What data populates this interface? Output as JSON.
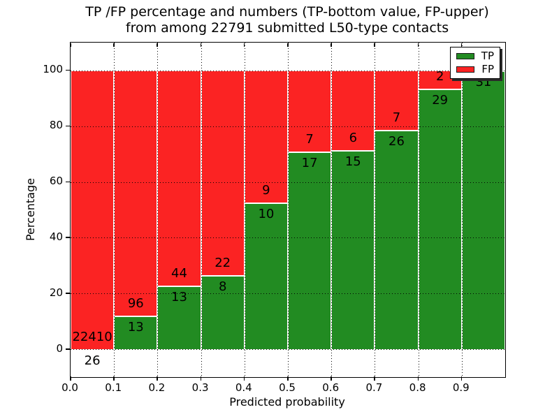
{
  "title": {
    "line1": "TP /FP percentage and numbers (TP-bottom value, FP-upper)",
    "line2": "from among 22791 submitted L50-type contacts"
  },
  "axes": {
    "xlabel": "Predicted probability",
    "ylabel": "Percentage",
    "x_ticks": [
      "0.0",
      "0.1",
      "0.2",
      "0.3",
      "0.4",
      "0.5",
      "0.6",
      "0.7",
      "0.8",
      "0.9"
    ],
    "y_ticks": [
      "0",
      "20",
      "40",
      "60",
      "80",
      "100"
    ],
    "xlim": [
      0.0,
      1.0
    ],
    "ylim": [
      -10,
      110
    ],
    "grid": "dotted"
  },
  "legend": {
    "position": "upper right",
    "items": [
      {
        "label": "TP",
        "color": "#228b22"
      },
      {
        "label": "FP",
        "color": "#fb2323"
      }
    ]
  },
  "colors": {
    "tp": "#228b22",
    "fp": "#fb2323",
    "text": "#000000",
    "background": "#ffffff",
    "grid": "#000000",
    "bar_edge": "#ffffff"
  },
  "chart_data": {
    "type": "bar",
    "stacked": true,
    "normalized": "percent",
    "title": "TP /FP percentage and numbers (TP-bottom value, FP-upper) from among 22791 submitted L50-type contacts",
    "xlabel": "Predicted probability",
    "ylabel": "Percentage",
    "total_contacts": 22791,
    "categories": [
      "0.0-0.1",
      "0.1-0.2",
      "0.2-0.3",
      "0.3-0.4",
      "0.4-0.5",
      "0.5-0.6",
      "0.6-0.7",
      "0.7-0.8",
      "0.8-0.9",
      "0.9-1.0"
    ],
    "series": [
      {
        "name": "TP",
        "counts": [
          26,
          13,
          13,
          8,
          10,
          17,
          15,
          26,
          29,
          31
        ]
      },
      {
        "name": "FP",
        "counts": [
          22410,
          96,
          44,
          22,
          9,
          7,
          6,
          7,
          2,
          0
        ]
      }
    ],
    "tp_percent": [
      0.12,
      11.93,
      22.81,
      26.67,
      52.63,
      70.83,
      71.43,
      78.79,
      93.55,
      100.0
    ],
    "legend_position": "upper right"
  }
}
